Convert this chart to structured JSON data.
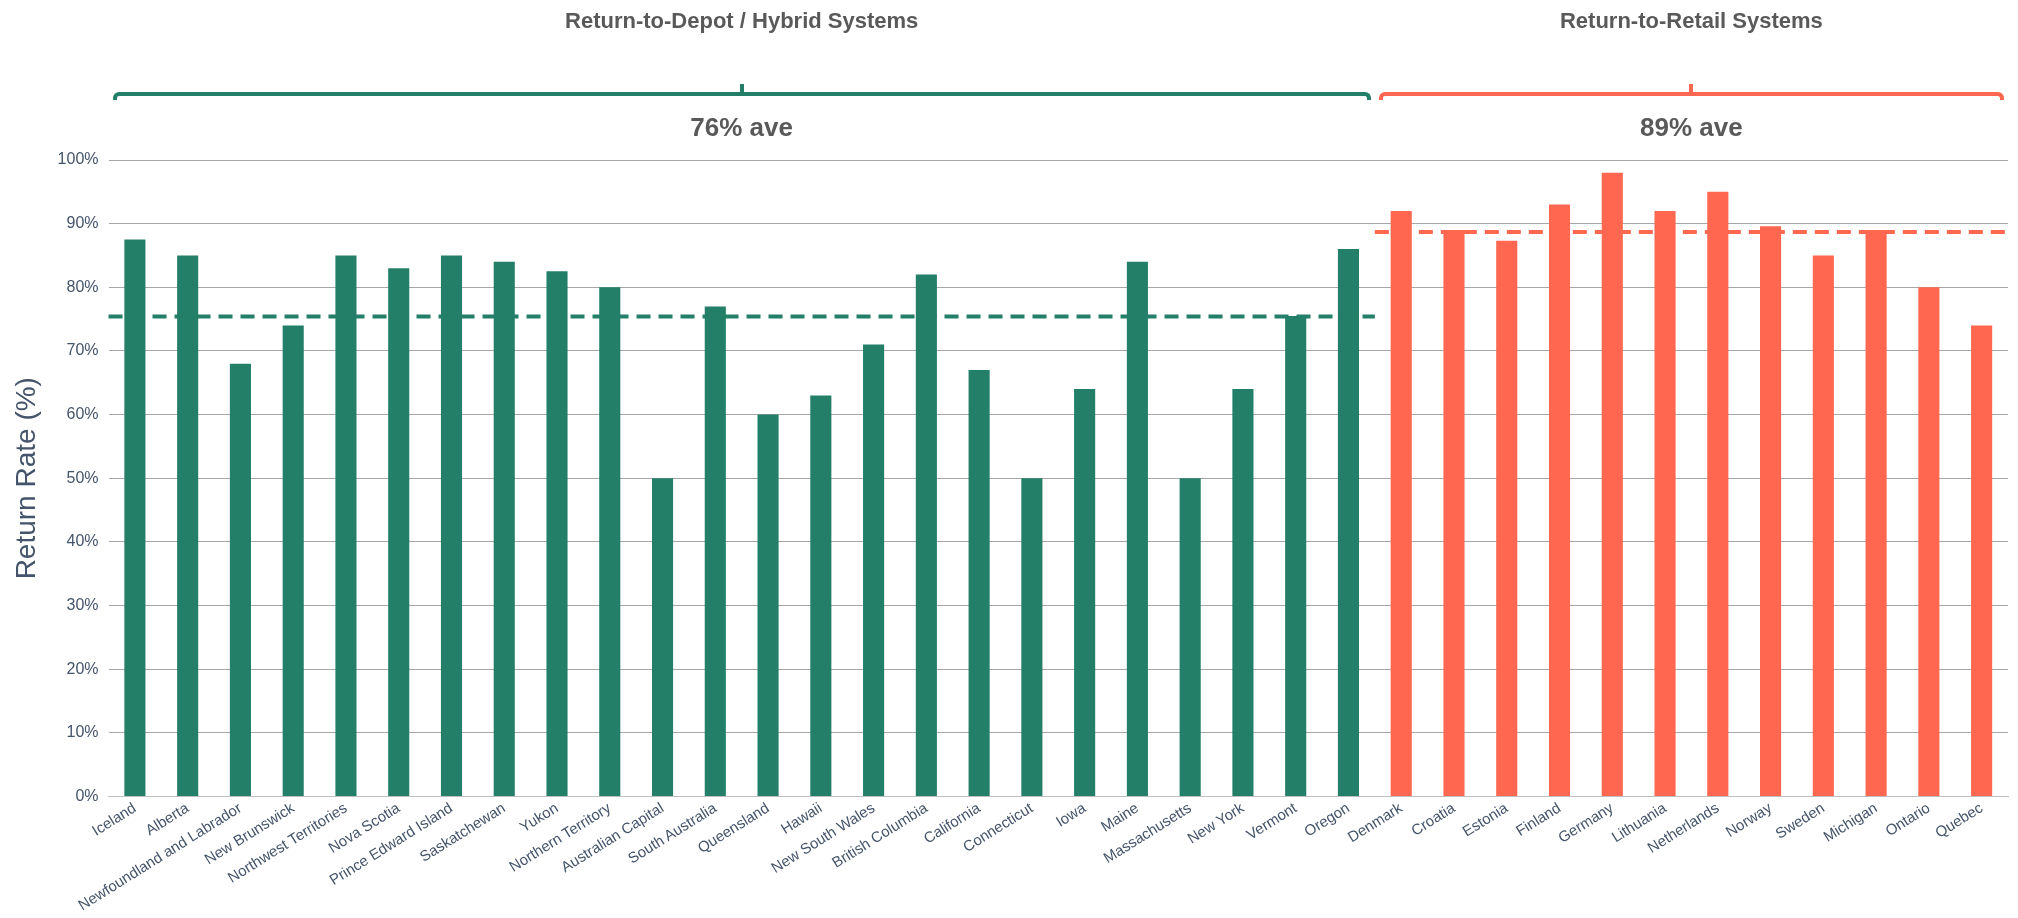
{
  "chart_data": {
    "type": "bar",
    "ylabel": "Return Rate (%)",
    "categories": [
      "Iceland",
      "Alberta",
      "Newfoundland and Labrador",
      "New Brunswick",
      "Northwest Territories",
      "Nova Scotia",
      "Prince Edward Island",
      "Saskatchewan",
      "Yukon",
      "Northern Territory",
      "Australian Capital",
      "South Australia",
      "Queensland",
      "Hawaii",
      "New South Wales",
      "British Columbia",
      "California",
      "Connecticut",
      "Iowa",
      "Maine",
      "Massachusetts",
      "New York",
      "Vermont",
      "Oregon",
      "Denmark",
      "Croatia",
      "Estonia",
      "Finland",
      "Germany",
      "Lithuania",
      "Netherlands",
      "Norway",
      "Sweden",
      "Michigan",
      "Ontario",
      "Quebec"
    ],
    "series": [
      {
        "color": "#237f68",
        "values": [
          87.5,
          85,
          68,
          74,
          85,
          83,
          85,
          84,
          82.5,
          80,
          50,
          77,
          60,
          63,
          71,
          82,
          67,
          50,
          64,
          84,
          50,
          64,
          75.5,
          86,
          null,
          null,
          null,
          null,
          null,
          null,
          null,
          null,
          null,
          null,
          null,
          null
        ]
      },
      {
        "color": "#ff6750",
        "values": [
          null,
          null,
          null,
          null,
          null,
          null,
          null,
          null,
          null,
          null,
          null,
          null,
          null,
          null,
          null,
          null,
          null,
          null,
          null,
          null,
          null,
          null,
          null,
          null,
          92,
          89,
          87.3,
          93,
          98,
          92,
          95,
          89.6,
          85,
          89,
          80,
          74
        ]
      }
    ],
    "ylim": [
      0,
      100
    ],
    "yticks": [
      {
        "value": 0,
        "label": "0%"
      },
      {
        "value": 10,
        "label": "10%"
      },
      {
        "value": 20,
        "label": "20%"
      },
      {
        "value": 30,
        "label": "30%"
      },
      {
        "value": 40,
        "label": "40%"
      },
      {
        "value": 50,
        "label": "50%"
      },
      {
        "value": 60,
        "label": "60%"
      },
      {
        "value": 70,
        "label": "70%"
      },
      {
        "value": 80,
        "label": "80%"
      },
      {
        "value": 90,
        "label": "90%"
      },
      {
        "value": 100,
        "label": "100%"
      }
    ],
    "grid": "y",
    "legend": false,
    "ref_lines": [
      {
        "axis": "y",
        "value": 75.4,
        "color": "#237f68",
        "line_style": "dashed"
      },
      {
        "axis": "y",
        "value": 88.7,
        "color": "#ff6750",
        "line_style": "dashed"
      }
    ],
    "annotations": [
      "Return-to-Depot / Hybrid Systems",
      "Return-to-Retail Systems",
      "76% ave",
      "89% ave"
    ]
  }
}
